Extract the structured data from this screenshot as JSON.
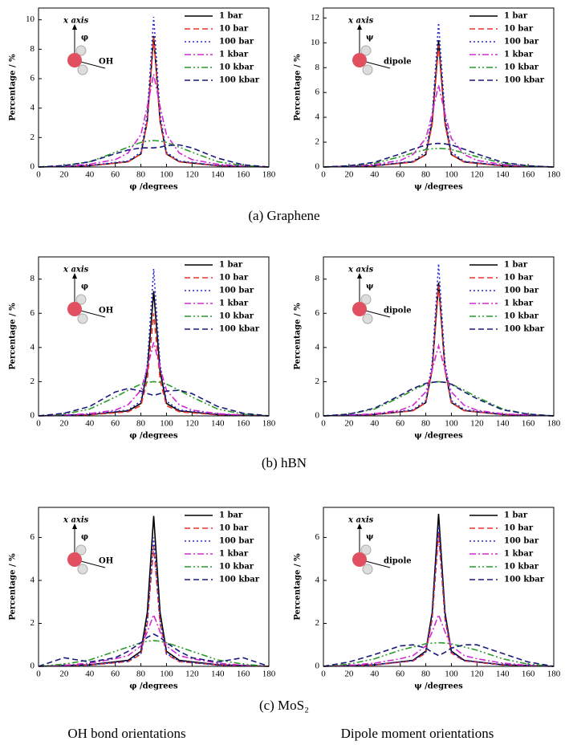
{
  "chart_data": [
    {
      "type": "line",
      "xlabel": "φ /degrees",
      "ylabel": "Percentage / %",
      "annotations": [
        "x axis",
        "φ",
        "OH"
      ],
      "legend": "upper right",
      "xlim": [
        0,
        180
      ],
      "xticks": [
        0,
        20,
        40,
        60,
        80,
        100,
        120,
        140,
        160,
        180
      ],
      "ylim": [
        0,
        10.8
      ],
      "yticks": [
        0,
        2,
        4,
        6,
        8,
        10
      ],
      "x": [
        0,
        20,
        40,
        60,
        70,
        80,
        85,
        90,
        95,
        100,
        110,
        120,
        140,
        160,
        180
      ],
      "series": [
        {
          "name": "1 bar",
          "color": "#000000",
          "dash": "solid",
          "values": [
            0,
            0.04,
            0.09,
            0.27,
            0.36,
            0.89,
            3.1,
            8.9,
            3.1,
            0.89,
            0.36,
            0.27,
            0.09,
            0.04,
            0
          ]
        },
        {
          "name": "10 bar",
          "color": "#e8342a",
          "dash": "dashed",
          "values": [
            0,
            0.04,
            0.09,
            0.26,
            0.35,
            0.88,
            3.1,
            8.8,
            3.1,
            0.88,
            0.35,
            0.26,
            0.09,
            0.04,
            0
          ]
        },
        {
          "name": "100 bar",
          "color": "#2a2ad8",
          "dash": "dotted",
          "values": [
            0,
            0.05,
            0.1,
            0.31,
            0.41,
            1.0,
            3.6,
            10.2,
            3.6,
            1.0,
            0.41,
            0.31,
            0.1,
            0.05,
            0
          ]
        },
        {
          "name": "1 kbar",
          "color": "#d22ad2",
          "dash": "dashdot",
          "values": [
            0,
            0.06,
            0.19,
            0.5,
            0.95,
            2.2,
            4.1,
            6.3,
            4.1,
            2.2,
            0.95,
            0.5,
            0.19,
            0.06,
            0
          ]
        },
        {
          "name": "10 kbar",
          "color": "#2a9a2a",
          "dash": "dashdotdot",
          "values": [
            0,
            0.09,
            0.36,
            1.0,
            1.35,
            1.67,
            1.76,
            1.8,
            1.76,
            1.67,
            1.35,
            1.0,
            0.36,
            0.09,
            0
          ]
        },
        {
          "name": "100 kbar",
          "color": "#1a1a7a",
          "dash": "dashed",
          "values": [
            0,
            0.1,
            0.35,
            0.9,
            1.15,
            1.3,
            1.3,
            1.3,
            1.35,
            1.45,
            1.5,
            1.3,
            0.6,
            0.15,
            0
          ]
        }
      ]
    },
    {
      "type": "line",
      "xlabel": "ψ /degrees",
      "ylabel": "Percentage / %",
      "annotations": [
        "x axis",
        "ψ",
        "dipole"
      ],
      "legend": "upper right",
      "xlim": [
        0,
        180
      ],
      "xticks": [
        0,
        20,
        40,
        60,
        80,
        100,
        120,
        140,
        160,
        180
      ],
      "ylim": [
        0,
        12.8
      ],
      "yticks": [
        0,
        2,
        4,
        6,
        8,
        10,
        12
      ],
      "x": [
        0,
        20,
        40,
        60,
        70,
        80,
        85,
        90,
        95,
        100,
        110,
        120,
        140,
        160,
        180
      ],
      "series": [
        {
          "name": "1 bar",
          "color": "#000000",
          "dash": "solid",
          "values": [
            0,
            0.05,
            0.1,
            0.31,
            0.41,
            1.0,
            3.6,
            10.2,
            3.6,
            1.0,
            0.41,
            0.31,
            0.1,
            0.05,
            0
          ]
        },
        {
          "name": "10 bar",
          "color": "#e8342a",
          "dash": "dashed",
          "values": [
            0,
            0.05,
            0.1,
            0.29,
            0.39,
            0.98,
            3.4,
            9.8,
            3.4,
            0.98,
            0.39,
            0.29,
            0.1,
            0.05,
            0
          ]
        },
        {
          "name": "100 bar",
          "color": "#2a2ad8",
          "dash": "dotted",
          "values": [
            0,
            0.06,
            0.12,
            0.35,
            0.46,
            1.2,
            4.1,
            11.6,
            4.1,
            1.2,
            0.46,
            0.35,
            0.12,
            0.06,
            0
          ]
        },
        {
          "name": "1 kbar",
          "color": "#d22ad2",
          "dash": "dashdot",
          "values": [
            0,
            0.07,
            0.2,
            0.53,
            1.0,
            2.3,
            4.3,
            6.6,
            4.3,
            2.3,
            1.0,
            0.53,
            0.2,
            0.07,
            0
          ]
        },
        {
          "name": "10 kbar",
          "color": "#2a9a2a",
          "dash": "dashdotdot",
          "values": [
            0,
            0.08,
            0.3,
            0.83,
            1.13,
            1.4,
            1.47,
            1.5,
            1.47,
            1.4,
            1.13,
            0.83,
            0.3,
            0.08,
            0
          ]
        },
        {
          "name": "100 kbar",
          "color": "#1a1a7a",
          "dash": "dashed",
          "values": [
            0,
            0.1,
            0.38,
            1.05,
            1.43,
            1.77,
            1.86,
            1.9,
            1.86,
            1.77,
            1.43,
            1.05,
            0.38,
            0.1,
            0
          ]
        }
      ]
    },
    {
      "type": "line",
      "xlabel": "φ /degrees",
      "ylabel": "Percentage / %",
      "annotations": [
        "x axis",
        "φ",
        "OH"
      ],
      "legend": "upper right",
      "xlim": [
        0,
        180
      ],
      "xticks": [
        0,
        20,
        40,
        60,
        80,
        100,
        120,
        140,
        160,
        180
      ],
      "ylim": [
        0,
        9.3
      ],
      "yticks": [
        0,
        2,
        4,
        6,
        8
      ],
      "x": [
        0,
        20,
        40,
        60,
        70,
        80,
        85,
        90,
        95,
        100,
        110,
        120,
        140,
        160,
        180
      ],
      "series": [
        {
          "name": "1 bar",
          "color": "#000000",
          "dash": "solid",
          "values": [
            0,
            0.04,
            0.07,
            0.22,
            0.29,
            0.73,
            2.6,
            7.3,
            2.6,
            0.73,
            0.29,
            0.22,
            0.07,
            0.04,
            0
          ]
        },
        {
          "name": "10 bar",
          "color": "#e8342a",
          "dash": "dashed",
          "values": [
            0,
            0.03,
            0.06,
            0.18,
            0.24,
            0.6,
            2.1,
            6.0,
            2.1,
            0.6,
            0.24,
            0.18,
            0.06,
            0.03,
            0
          ]
        },
        {
          "name": "100 bar",
          "color": "#2a2ad8",
          "dash": "dotted",
          "values": [
            0,
            0.04,
            0.09,
            0.26,
            0.34,
            0.86,
            3.0,
            8.6,
            3.0,
            0.86,
            0.34,
            0.26,
            0.09,
            0.04,
            0
          ]
        },
        {
          "name": "1 kbar",
          "color": "#d22ad2",
          "dash": "dashdot",
          "values": [
            0,
            0.04,
            0.13,
            0.34,
            0.65,
            1.5,
            2.8,
            4.3,
            2.8,
            1.5,
            0.65,
            0.34,
            0.13,
            0.04,
            0
          ]
        },
        {
          "name": "10 kbar",
          "color": "#2a9a2a",
          "dash": "dashdotdot",
          "values": [
            0,
            0.1,
            0.4,
            1.1,
            1.5,
            1.86,
            1.96,
            2.0,
            1.96,
            1.86,
            1.5,
            1.1,
            0.4,
            0.1,
            0
          ]
        },
        {
          "name": "100 kbar",
          "color": "#1a1a7a",
          "dash": "dashed",
          "values": [
            0,
            0.15,
            0.55,
            1.4,
            1.6,
            1.45,
            1.3,
            1.2,
            1.3,
            1.45,
            1.5,
            1.3,
            0.55,
            0.15,
            0
          ]
        }
      ]
    },
    {
      "type": "line",
      "xlabel": "ψ /degrees",
      "ylabel": "Percentage / %",
      "annotations": [
        "x axis",
        "ψ",
        "dipole"
      ],
      "legend": "upper right",
      "xlim": [
        0,
        180
      ],
      "xticks": [
        0,
        20,
        40,
        60,
        80,
        100,
        120,
        140,
        160,
        180
      ],
      "ylim": [
        0,
        9.3
      ],
      "yticks": [
        0,
        2,
        4,
        6,
        8
      ],
      "x": [
        0,
        20,
        40,
        60,
        70,
        80,
        85,
        90,
        95,
        100,
        110,
        120,
        140,
        160,
        180
      ],
      "series": [
        {
          "name": "1 bar",
          "color": "#000000",
          "dash": "solid",
          "values": [
            0,
            0.04,
            0.08,
            0.23,
            0.31,
            0.78,
            2.7,
            7.8,
            2.7,
            0.78,
            0.31,
            0.23,
            0.08,
            0.04,
            0
          ]
        },
        {
          "name": "10 bar",
          "color": "#e8342a",
          "dash": "dashed",
          "values": [
            0,
            0.04,
            0.08,
            0.23,
            0.3,
            0.76,
            2.7,
            7.6,
            2.7,
            0.76,
            0.3,
            0.23,
            0.08,
            0.04,
            0
          ]
        },
        {
          "name": "100 bar",
          "color": "#2a2ad8",
          "dash": "dotted",
          "values": [
            0,
            0.04,
            0.09,
            0.27,
            0.36,
            0.89,
            3.1,
            8.9,
            3.1,
            0.89,
            0.36,
            0.27,
            0.09,
            0.04,
            0
          ]
        },
        {
          "name": "1 kbar",
          "color": "#d22ad2",
          "dash": "dashdot",
          "values": [
            0,
            0.04,
            0.12,
            0.33,
            0.62,
            1.4,
            2.7,
            4.1,
            2.7,
            1.4,
            0.62,
            0.33,
            0.12,
            0.04,
            0
          ]
        },
        {
          "name": "10 kbar",
          "color": "#2a9a2a",
          "dash": "dashdotdot",
          "values": [
            0,
            0.1,
            0.4,
            1.1,
            1.5,
            1.86,
            1.96,
            2.0,
            1.96,
            1.86,
            1.5,
            1.1,
            0.4,
            0.1,
            0
          ]
        },
        {
          "name": "100 kbar",
          "color": "#1a1a7a",
          "dash": "dashed",
          "values": [
            0,
            0.1,
            0.45,
            1.2,
            1.6,
            1.9,
            1.96,
            2.0,
            1.96,
            1.85,
            1.4,
            1.0,
            0.35,
            0.1,
            0
          ]
        }
      ]
    },
    {
      "type": "line",
      "xlabel": "φ /degrees",
      "ylabel": "Percentage / %",
      "annotations": [
        "x axis",
        "φ",
        "OH"
      ],
      "legend": "upper right",
      "xlim": [
        0,
        180
      ],
      "xticks": [
        0,
        20,
        40,
        60,
        80,
        100,
        120,
        140,
        160,
        180
      ],
      "ylim": [
        0,
        7.4
      ],
      "yticks": [
        0,
        2,
        4,
        6
      ],
      "x": [
        0,
        20,
        40,
        60,
        70,
        80,
        85,
        90,
        95,
        100,
        110,
        120,
        140,
        160,
        180
      ],
      "series": [
        {
          "name": "1 bar",
          "color": "#000000",
          "dash": "solid",
          "values": [
            0,
            0.04,
            0.07,
            0.21,
            0.28,
            0.7,
            2.5,
            7.0,
            2.5,
            0.7,
            0.28,
            0.21,
            0.07,
            0.04,
            0
          ]
        },
        {
          "name": "10 bar",
          "color": "#e8342a",
          "dash": "dashed",
          "values": [
            0,
            0.03,
            0.06,
            0.17,
            0.22,
            0.56,
            2.0,
            5.6,
            2.0,
            0.56,
            0.22,
            0.17,
            0.06,
            0.03,
            0
          ]
        },
        {
          "name": "100 bar",
          "color": "#2a2ad8",
          "dash": "dotted",
          "values": [
            0,
            0.03,
            0.06,
            0.18,
            0.24,
            0.6,
            2.1,
            6.0,
            2.1,
            0.6,
            0.24,
            0.18,
            0.06,
            0.03,
            0
          ]
        },
        {
          "name": "1 kbar",
          "color": "#d22ad2",
          "dash": "dashdot",
          "values": [
            0,
            0.05,
            0.15,
            0.35,
            0.5,
            0.95,
            1.6,
            2.4,
            1.6,
            0.95,
            0.5,
            0.35,
            0.15,
            0.05,
            0
          ]
        },
        {
          "name": "10 kbar",
          "color": "#2a9a2a",
          "dash": "dashdotdot",
          "values": [
            0,
            0.1,
            0.3,
            0.7,
            0.9,
            1.1,
            1.17,
            1.2,
            1.17,
            1.1,
            0.9,
            0.7,
            0.3,
            0.1,
            0
          ]
        },
        {
          "name": "100 kbar",
          "color": "#1a1a7a",
          "dash": "dashed",
          "values": [
            0,
            0.4,
            0.2,
            0.4,
            0.7,
            1.1,
            1.35,
            1.5,
            1.35,
            1.1,
            0.7,
            0.4,
            0.2,
            0.4,
            0
          ]
        }
      ]
    },
    {
      "type": "line",
      "xlabel": "ψ /degrees",
      "ylabel": "Percentage / %",
      "annotations": [
        "x axis",
        "ψ",
        "dipole"
      ],
      "legend": "upper right",
      "xlim": [
        0,
        180
      ],
      "xticks": [
        0,
        20,
        40,
        60,
        80,
        100,
        120,
        140,
        160,
        180
      ],
      "ylim": [
        0,
        7.4
      ],
      "yticks": [
        0,
        2,
        4,
        6
      ],
      "x": [
        0,
        20,
        40,
        60,
        70,
        80,
        85,
        90,
        95,
        100,
        110,
        120,
        140,
        160,
        180
      ],
      "series": [
        {
          "name": "1 bar",
          "color": "#000000",
          "dash": "solid",
          "values": [
            0,
            0.04,
            0.07,
            0.21,
            0.28,
            0.71,
            2.5,
            7.1,
            2.5,
            0.71,
            0.28,
            0.21,
            0.07,
            0.04,
            0
          ]
        },
        {
          "name": "10 bar",
          "color": "#e8342a",
          "dash": "dashed",
          "values": [
            0,
            0.03,
            0.06,
            0.19,
            0.25,
            0.62,
            2.2,
            6.2,
            2.2,
            0.62,
            0.25,
            0.19,
            0.06,
            0.03,
            0
          ]
        },
        {
          "name": "100 bar",
          "color": "#2a2ad8",
          "dash": "dotted",
          "values": [
            0,
            0.03,
            0.07,
            0.2,
            0.26,
            0.66,
            2.3,
            6.6,
            2.3,
            0.66,
            0.26,
            0.2,
            0.07,
            0.03,
            0
          ]
        },
        {
          "name": "1 kbar",
          "color": "#d22ad2",
          "dash": "dashdot",
          "values": [
            0,
            0.05,
            0.15,
            0.35,
            0.5,
            0.95,
            1.6,
            2.4,
            1.6,
            0.95,
            0.5,
            0.35,
            0.15,
            0.05,
            0
          ]
        },
        {
          "name": "10 kbar",
          "color": "#2a9a2a",
          "dash": "dashdotdot",
          "values": [
            0,
            0.1,
            0.35,
            0.75,
            0.9,
            1.05,
            1.08,
            1.1,
            1.08,
            1.05,
            0.9,
            0.75,
            0.35,
            0.1,
            0
          ]
        },
        {
          "name": "100 kbar",
          "color": "#1a1a7a",
          "dash": "dashed",
          "values": [
            0,
            0.2,
            0.55,
            0.95,
            1.0,
            0.85,
            0.65,
            0.5,
            0.65,
            0.85,
            1.0,
            1.0,
            0.6,
            0.2,
            0
          ]
        }
      ]
    }
  ],
  "captions": [
    "(a) Graphene",
    "(b) hBN",
    "(c) MoS₂"
  ],
  "column_labels": [
    "OH bond orientations",
    "Dipole moment orientations"
  ]
}
